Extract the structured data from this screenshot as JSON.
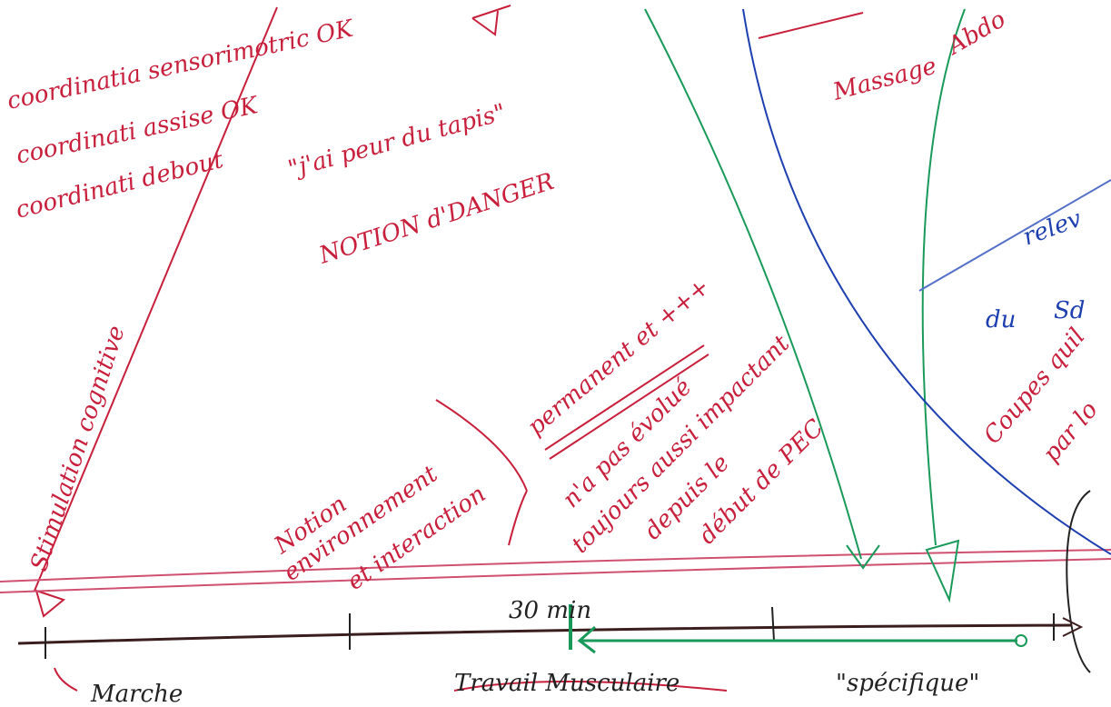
{
  "notes": {
    "top_left": [
      "coordinatia sensorimotric OK",
      "coordinati assise OK",
      "coordinati debout"
    ],
    "quote": "\"j'ai peur du tapis\"",
    "danger": "NOTION d'DANGER",
    "stimulation": "Stimulation cognitive",
    "environment": [
      "Notion",
      "environnement",
      "et interaction"
    ],
    "permanent": "permanent et +++",
    "evolution": [
      "n'a pas évolué",
      "toujours aussi impactant",
      "depuis le",
      "début de PEC"
    ],
    "massage": "Massage",
    "abdo": "Abdo",
    "right": [
      "relev",
      "du",
      "Sd",
      "Coupes quil",
      "par lo"
    ]
  },
  "timeline": {
    "duration": "30 min",
    "phases": [
      "Marche",
      "Travail Musculaire",
      "\"spécifique\""
    ]
  }
}
